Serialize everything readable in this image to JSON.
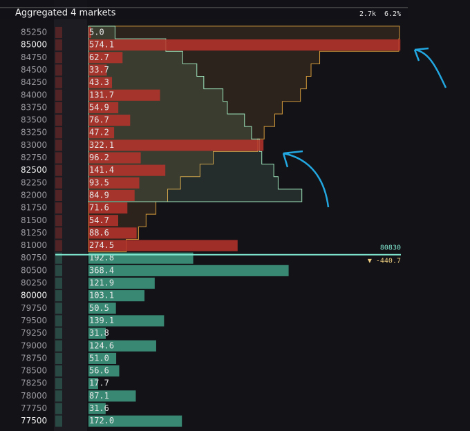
{
  "chart_data": {
    "type": "bar",
    "orientation": "horizontal",
    "title": "Aggregated 4 markets",
    "xlim": [
      0,
      575
    ],
    "header_stats": [
      "2.7k",
      "6.2%"
    ],
    "mid_price": "80830",
    "mid_change": "▼ -440.7",
    "series": [
      {
        "color": "#b8342b",
        "area_color": "#d49a3c",
        "categories": [
          "85250",
          "85000",
          "84750",
          "84500",
          "84250",
          "84000",
          "83750",
          "83500",
          "83250",
          "83000",
          "82750",
          "82500",
          "82250",
          "82000",
          "81750",
          "81500",
          "81250",
          "81000"
        ],
        "values": [
          5.0,
          574.1,
          62.7,
          33.7,
          43.3,
          131.7,
          54.9,
          76.7,
          47.2,
          322.1,
          96.2,
          141.4,
          93.5,
          84.9,
          71.6,
          54.7,
          88.6,
          274.5
        ],
        "value_labels": [
          "5.0",
          "574.1",
          "62.7",
          "33.7",
          "43.3",
          "131.7",
          "54.9",
          "76.7",
          "47.2",
          "322.1",
          "96.2",
          "141.4",
          "93.5",
          "84.9",
          "71.6",
          "54.7",
          "88.6",
          "274.5"
        ]
      },
      {
        "color": "#3f9e84",
        "area_color": "#9fe6bd",
        "categories": [
          "80750",
          "80500",
          "80250",
          "80000",
          "79750",
          "79500",
          "79250",
          "79000",
          "78750",
          "78500",
          "78250",
          "78000",
          "77750",
          "77500"
        ],
        "values": [
          192.8,
          368.4,
          121.9,
          103.1,
          50.5,
          139.1,
          31.8,
          124.6,
          51.0,
          56.6,
          17.7,
          87.1,
          31.6,
          172.0
        ],
        "value_labels": [
          "192.8",
          "368.4",
          "121.9",
          "103.1",
          "50.5",
          "139.1",
          "31.8",
          "124.6",
          "51.0",
          "56.6",
          "17.7",
          "87.1",
          "31.6",
          "172.0"
        ]
      }
    ]
  }
}
